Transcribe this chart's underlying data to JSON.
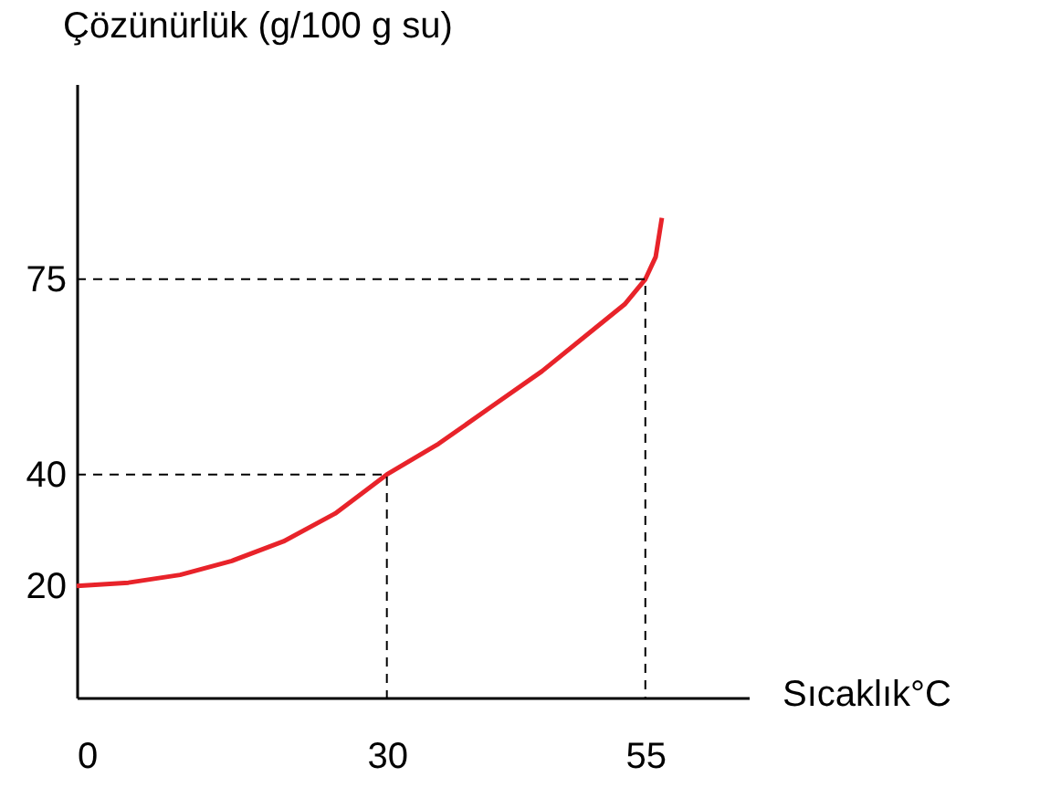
{
  "chart_data": {
    "type": "line",
    "xlabel": "Sıcaklık°C",
    "ylabel": "Çözünürlük (g/100 g su)",
    "xlim": [
      0,
      65
    ],
    "ylim": [
      0,
      110
    ],
    "xticks": [
      0,
      30,
      55
    ],
    "yticks": [
      20,
      40,
      75
    ],
    "grid": false,
    "series": [
      {
        "color": "#e8232a",
        "x": [
          0,
          5,
          10,
          15,
          20,
          25,
          30,
          35,
          40,
          45,
          50,
          53,
          55,
          56,
          56.6
        ],
        "values": [
          20,
          20.6,
          22,
          24.5,
          28,
          33,
          40,
          45.5,
          52,
          58.5,
          66,
          70.5,
          75,
          79,
          86
        ],
        "line_style": "solid"
      },
      {
        "color": "#000000",
        "x": [
          0,
          30,
          30
        ],
        "values": [
          40,
          40,
          0
        ],
        "line_style": "dashed"
      },
      {
        "color": "#000000",
        "x": [
          0,
          55,
          55
        ],
        "values": [
          75,
          75,
          0
        ],
        "line_style": "dashed"
      }
    ]
  }
}
